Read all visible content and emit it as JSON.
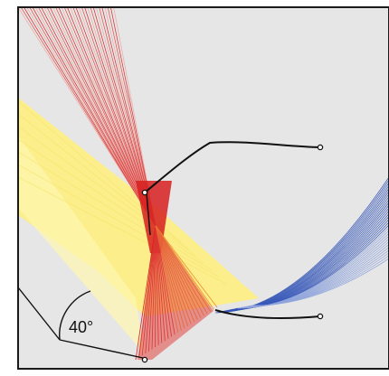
{
  "diagram": {
    "angle_label": "40°",
    "colors": {
      "background": "#e6e6e6",
      "frame": "#1a1a1a",
      "red_ray": "#e0463e",
      "red_ray_deep": "#d61e1e",
      "red_ray_light": "#f0a3a0",
      "orange_ray": "#ee8a2e",
      "yellow_band": "#fff07a",
      "yellow_band_light": "#fff6b0",
      "blue_ray": "#3658b8",
      "blue_ray_light": "#8fa4dc",
      "mirror": "#111111"
    }
  }
}
